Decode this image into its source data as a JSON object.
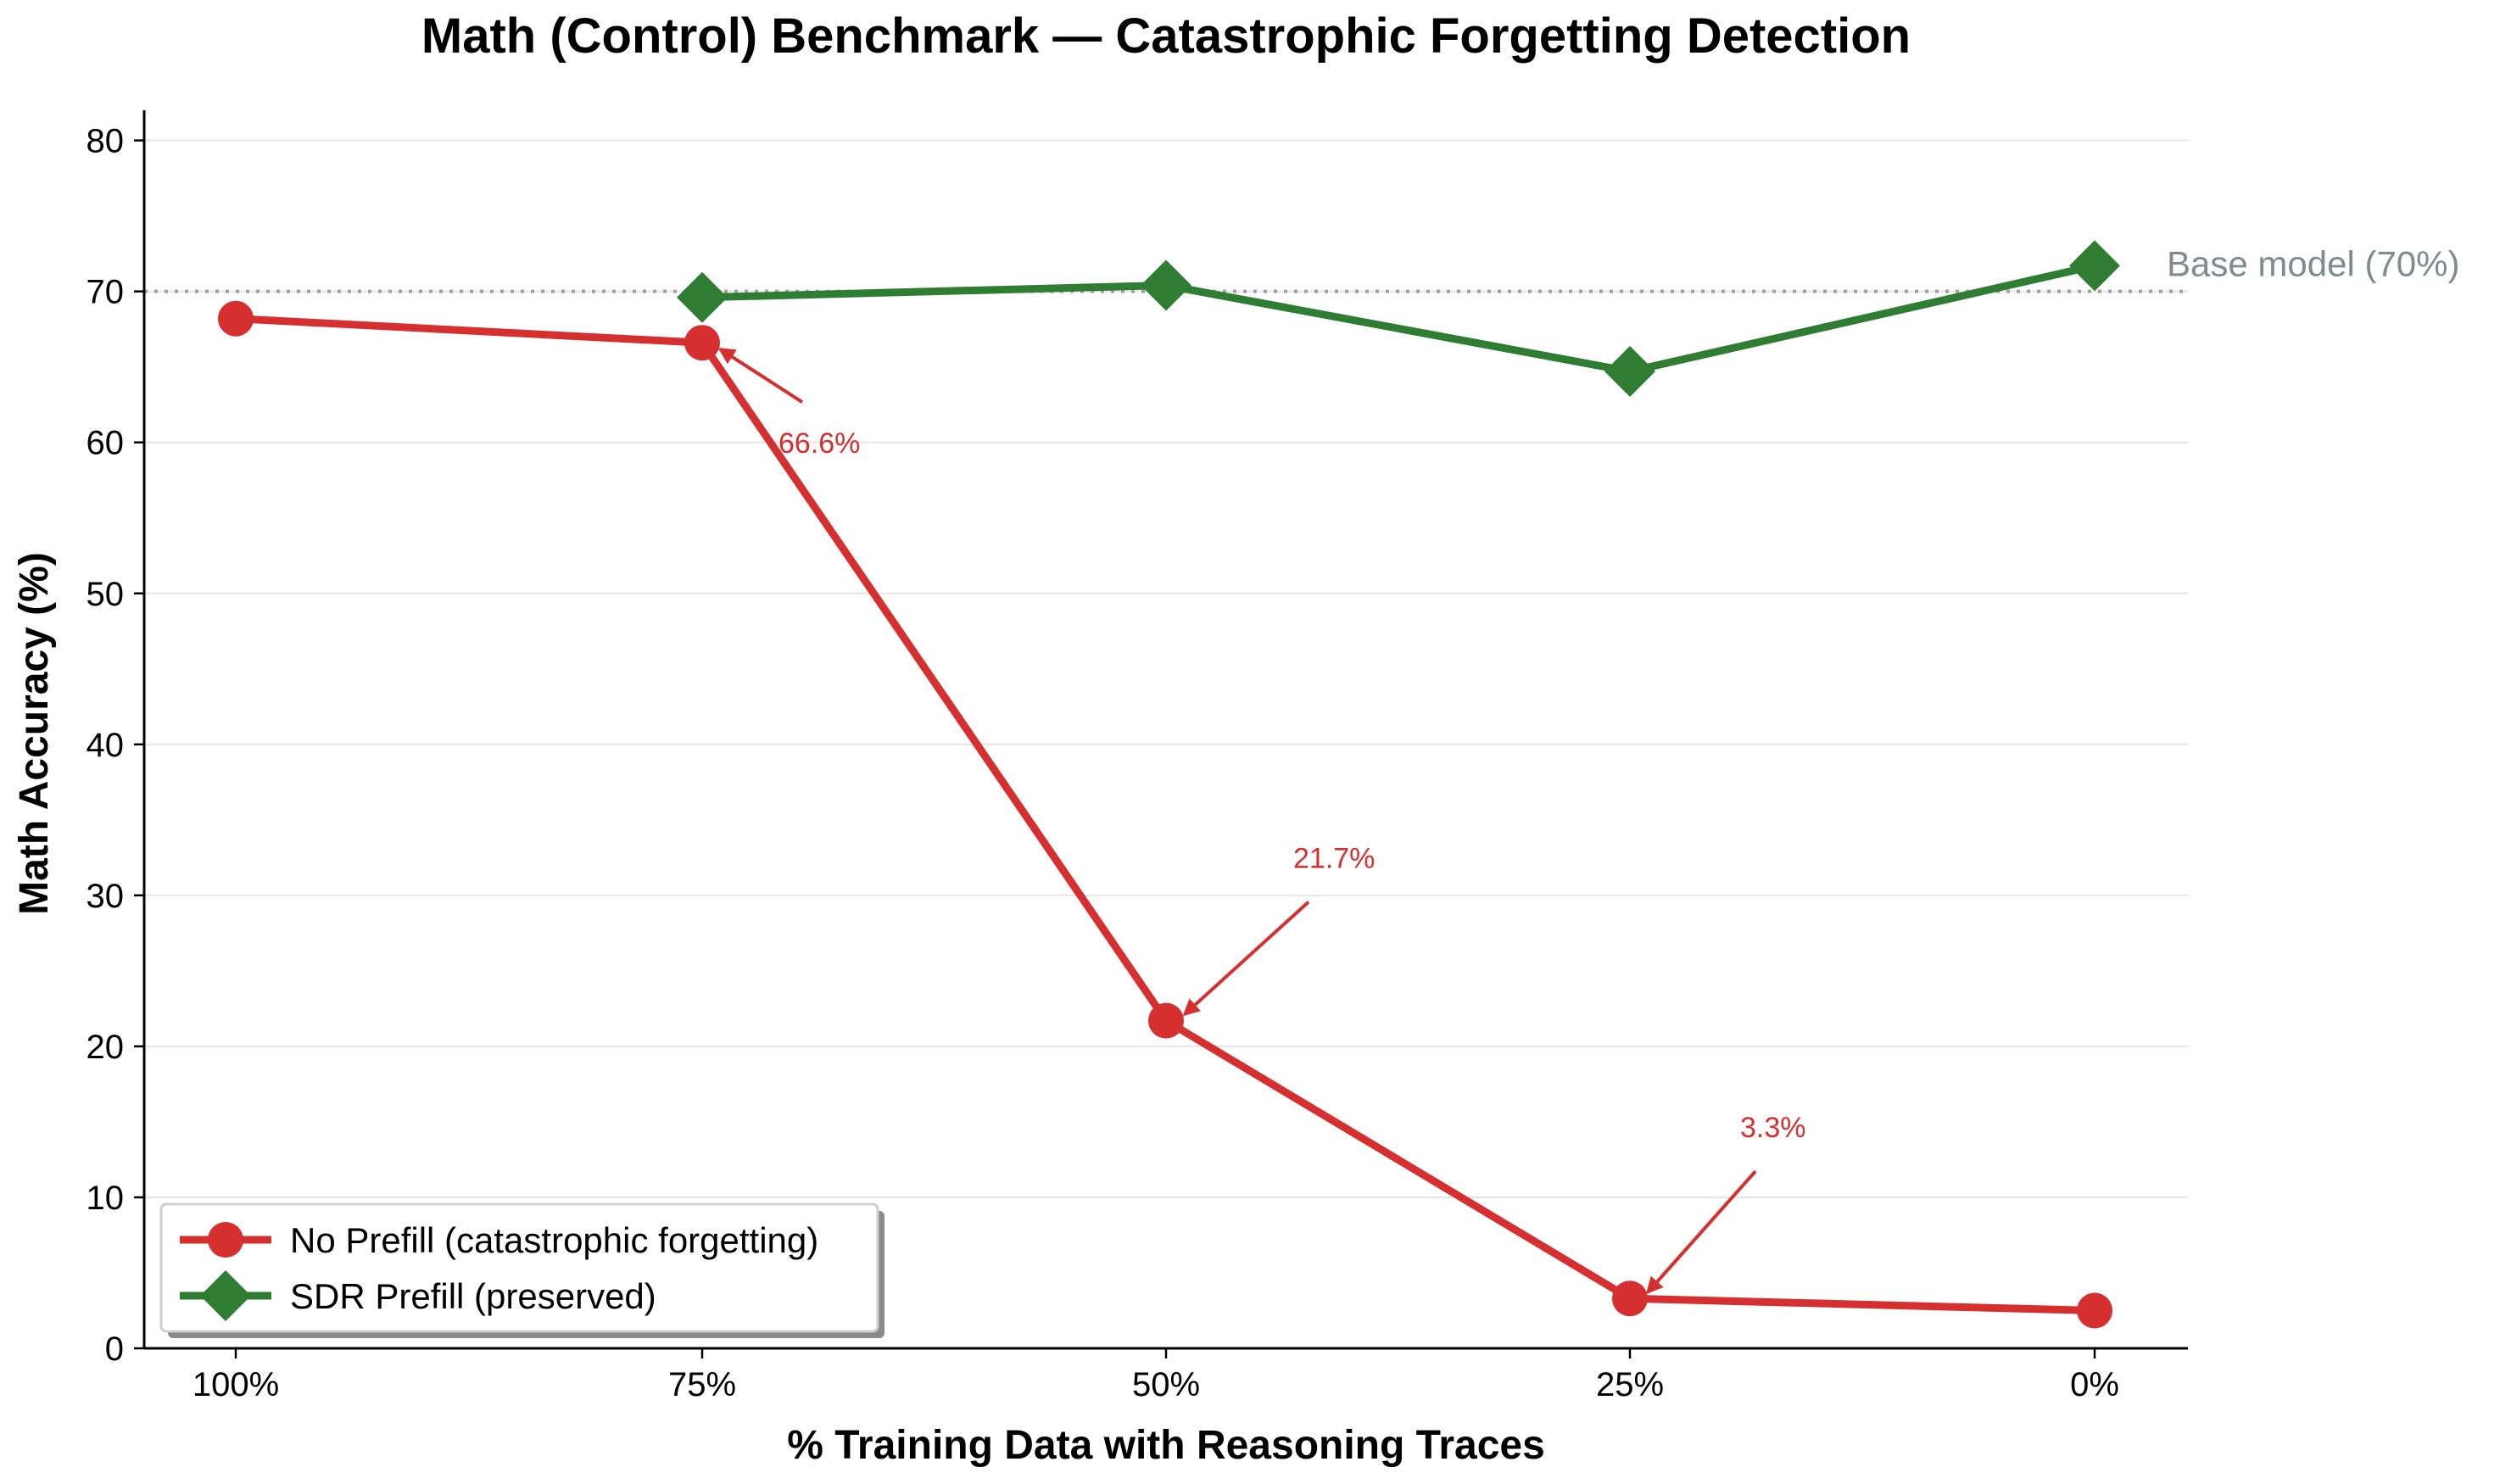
{
  "chart_data": {
    "type": "line",
    "title": "Math (Control) Benchmark — Catastrophic Forgetting Detection",
    "xlabel": "% Training Data with Reasoning Traces",
    "ylabel": "Math Accuracy (%)",
    "categories": [
      "100%",
      "75%",
      "50%",
      "25%",
      "0%"
    ],
    "ylim": [
      0,
      82
    ],
    "yticks": [
      0,
      10,
      20,
      30,
      40,
      50,
      60,
      70,
      80
    ],
    "grid": "horizontal",
    "legend_position": "lower-left",
    "series": [
      {
        "name": "No Prefill (catastrophic forgetting)",
        "color": "#d62f2f",
        "marker": "circle",
        "values": [
          68.2,
          66.6,
          21.7,
          3.3,
          2.5
        ]
      },
      {
        "name": "SDR Prefill (preserved)",
        "color": "#2e7d32",
        "marker": "diamond",
        "values": [
          null,
          69.6,
          70.4,
          64.7,
          71.7
        ]
      }
    ],
    "reference_line": {
      "value": 70,
      "label": "Base model (70%)",
      "color": "#a0a0a0",
      "label_color": "#7f8c8d"
    },
    "annotations": [
      {
        "text": "66.6%",
        "category_index": 1,
        "value": 66.6
      },
      {
        "text": "21.7%",
        "category_index": 2,
        "value": 21.7
      },
      {
        "text": "3.3%",
        "category_index": 3,
        "value": 3.3
      }
    ]
  }
}
